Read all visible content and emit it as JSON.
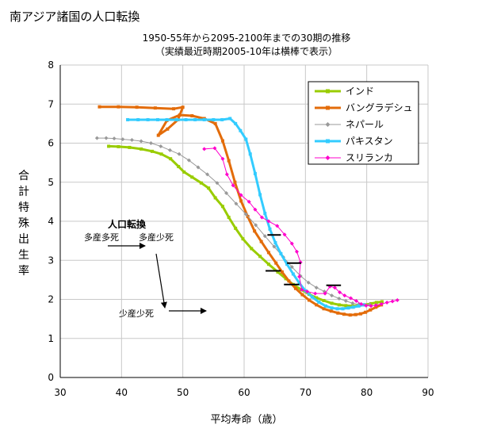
{
  "page": {
    "title": "南アジア諸国の人口転換"
  },
  "chart_data": {
    "type": "line",
    "title_line1": "1950-55年から2095-2100年までの30期の推移",
    "title_line2": "（実績最近時期2005-10年は横棒で表示）",
    "xlabel": "平均寿命（歳）",
    "ylabel": "合計特殊出生率",
    "xlim": [
      30,
      90
    ],
    "ylim": [
      0,
      8
    ],
    "x_ticks": [
      "30",
      "40",
      "50",
      "60",
      "70",
      "80",
      "90"
    ],
    "y_ticks": [
      "0",
      "1",
      "2",
      "3",
      "4",
      "5",
      "6",
      "7",
      "8"
    ],
    "series": [
      {
        "name": "インド",
        "color": "#99cc00",
        "marker": "square",
        "points": [
          [
            37.9,
            5.92
          ],
          [
            39.5,
            5.91
          ],
          [
            41.3,
            5.89
          ],
          [
            43.2,
            5.85
          ],
          [
            45.0,
            5.79
          ],
          [
            46.5,
            5.72
          ],
          [
            48.0,
            5.6
          ],
          [
            49.3,
            5.4
          ],
          [
            50.2,
            5.26
          ],
          [
            51.5,
            5.13
          ],
          [
            53.0,
            4.98
          ],
          [
            54.2,
            4.85
          ],
          [
            55.3,
            4.6
          ],
          [
            56.5,
            4.38
          ],
          [
            57.5,
            4.1
          ],
          [
            58.6,
            3.82
          ],
          [
            59.8,
            3.55
          ],
          [
            61.2,
            3.3
          ],
          [
            62.6,
            3.1
          ],
          [
            64.0,
            2.9
          ],
          [
            65.5,
            2.7
          ],
          [
            66.8,
            2.53
          ],
          [
            68.0,
            2.38
          ],
          [
            69.3,
            2.25
          ],
          [
            70.6,
            2.13
          ],
          [
            71.8,
            2.04
          ],
          [
            73.0,
            1.97
          ],
          [
            74.3,
            1.9
          ],
          [
            75.5,
            1.86
          ],
          [
            76.6,
            1.84
          ],
          [
            77.7,
            1.83
          ],
          [
            78.7,
            1.84
          ],
          [
            79.7,
            1.86
          ],
          [
            80.7,
            1.89
          ],
          [
            81.6,
            1.92
          ],
          [
            82.5,
            1.94
          ]
        ]
      },
      {
        "name": "バングラデシュ",
        "color": "#e36c0a",
        "marker": "square",
        "points": [
          [
            36.4,
            6.93
          ],
          [
            39.5,
            6.93
          ],
          [
            42.5,
            6.92
          ],
          [
            45.5,
            6.9
          ],
          [
            48.5,
            6.88
          ],
          [
            50.0,
            6.92
          ],
          [
            49.2,
            6.6
          ],
          [
            47.5,
            6.36
          ],
          [
            46.0,
            6.2
          ],
          [
            47.4,
            6.58
          ],
          [
            49.5,
            6.72
          ],
          [
            51.5,
            6.7
          ],
          [
            53.5,
            6.63
          ],
          [
            55.3,
            6.5
          ],
          [
            56.5,
            6.06
          ],
          [
            57.5,
            5.55
          ],
          [
            58.5,
            5.0
          ],
          [
            59.5,
            4.52
          ],
          [
            60.6,
            4.12
          ],
          [
            61.7,
            3.75
          ],
          [
            62.8,
            3.48
          ],
          [
            64.0,
            3.2
          ],
          [
            65.2,
            2.93
          ],
          [
            66.2,
            2.7
          ],
          [
            67.3,
            2.47
          ],
          [
            68.4,
            2.28
          ],
          [
            69.5,
            2.12
          ],
          [
            70.6,
            1.98
          ],
          [
            71.8,
            1.86
          ],
          [
            73.0,
            1.76
          ],
          [
            74.2,
            1.7
          ],
          [
            75.3,
            1.65
          ],
          [
            76.3,
            1.62
          ],
          [
            77.3,
            1.6
          ],
          [
            78.2,
            1.61
          ],
          [
            79.0,
            1.63
          ],
          [
            79.8,
            1.67
          ],
          [
            80.6,
            1.73
          ],
          [
            81.5,
            1.8
          ],
          [
            82.4,
            1.86
          ]
        ]
      },
      {
        "name": "ネパール",
        "color": "#999999",
        "marker": "diamond",
        "points": [
          [
            36.0,
            6.13
          ],
          [
            37.5,
            6.13
          ],
          [
            38.8,
            6.12
          ],
          [
            40.2,
            6.1
          ],
          [
            41.7,
            6.08
          ],
          [
            43.2,
            6.05
          ],
          [
            44.8,
            6.0
          ],
          [
            46.4,
            5.92
          ],
          [
            47.9,
            5.82
          ],
          [
            49.4,
            5.72
          ],
          [
            51.0,
            5.56
          ],
          [
            52.5,
            5.38
          ],
          [
            54.0,
            5.2
          ],
          [
            55.6,
            4.98
          ],
          [
            57.1,
            4.72
          ],
          [
            58.7,
            4.45
          ],
          [
            60.3,
            4.18
          ],
          [
            61.9,
            3.9
          ],
          [
            63.4,
            3.62
          ],
          [
            64.9,
            3.35
          ],
          [
            66.4,
            3.08
          ],
          [
            67.8,
            2.83
          ],
          [
            69.2,
            2.6
          ],
          [
            70.5,
            2.43
          ],
          [
            71.8,
            2.3
          ],
          [
            73.1,
            2.2
          ],
          [
            74.3,
            2.1
          ],
          [
            75.5,
            2.02
          ],
          [
            76.6,
            1.96
          ],
          [
            77.7,
            1.9
          ],
          [
            78.7,
            1.87
          ],
          [
            79.6,
            1.86
          ],
          [
            80.5,
            1.87
          ]
        ]
      },
      {
        "name": "パキスタン",
        "color": "#33ccff",
        "marker": "square",
        "points": [
          [
            41.0,
            6.6
          ],
          [
            42.7,
            6.6
          ],
          [
            44.3,
            6.6
          ],
          [
            45.9,
            6.6
          ],
          [
            47.4,
            6.6
          ],
          [
            49.0,
            6.6
          ],
          [
            50.5,
            6.6
          ],
          [
            52.0,
            6.6
          ],
          [
            53.5,
            6.6
          ],
          [
            55.0,
            6.6
          ],
          [
            56.4,
            6.6
          ],
          [
            57.7,
            6.63
          ],
          [
            58.6,
            6.5
          ],
          [
            59.4,
            6.32
          ],
          [
            60.3,
            6.1
          ],
          [
            61.0,
            5.72
          ],
          [
            61.8,
            5.22
          ],
          [
            62.6,
            4.68
          ],
          [
            63.4,
            4.2
          ],
          [
            64.2,
            3.8
          ],
          [
            65.1,
            3.45
          ],
          [
            66.0,
            3.17
          ],
          [
            67.0,
            2.9
          ],
          [
            68.0,
            2.65
          ],
          [
            69.0,
            2.42
          ],
          [
            70.0,
            2.22
          ],
          [
            71.1,
            2.06
          ],
          [
            72.2,
            1.93
          ],
          [
            73.3,
            1.83
          ],
          [
            74.3,
            1.78
          ],
          [
            75.2,
            1.76
          ],
          [
            76.1,
            1.76
          ],
          [
            77.0,
            1.78
          ],
          [
            77.8,
            1.8
          ],
          [
            78.7,
            1.83
          ],
          [
            79.5,
            1.86
          ]
        ]
      },
      {
        "name": "スリランカ",
        "color": "#ff00cc",
        "marker": "diamond",
        "points": [
          [
            53.5,
            5.85
          ],
          [
            55.2,
            5.87
          ],
          [
            56.5,
            5.6
          ],
          [
            57.2,
            5.2
          ],
          [
            58.2,
            4.92
          ],
          [
            59.5,
            4.67
          ],
          [
            60.8,
            4.5
          ],
          [
            61.8,
            4.3
          ],
          [
            62.9,
            4.1
          ],
          [
            64.0,
            4.0
          ],
          [
            65.4,
            3.88
          ],
          [
            66.6,
            3.66
          ],
          [
            67.8,
            3.43
          ],
          [
            68.6,
            3.22
          ],
          [
            69.2,
            2.95
          ],
          [
            69.0,
            2.58
          ],
          [
            69.4,
            2.25
          ],
          [
            70.3,
            2.2
          ],
          [
            71.6,
            2.15
          ],
          [
            73.2,
            2.15
          ],
          [
            74.0,
            2.33
          ],
          [
            74.8,
            2.3
          ],
          [
            75.6,
            2.18
          ],
          [
            76.4,
            2.1
          ],
          [
            77.4,
            2.03
          ],
          [
            78.3,
            1.96
          ],
          [
            79.1,
            1.88
          ],
          [
            79.9,
            1.84
          ],
          [
            80.7,
            1.83
          ],
          [
            81.5,
            1.85
          ],
          [
            82.4,
            1.88
          ],
          [
            83.3,
            1.92
          ],
          [
            84.2,
            1.95
          ],
          [
            85.0,
            1.98
          ]
        ]
      }
    ],
    "recent_period_bars": [
      {
        "name": "インド",
        "x": [
          63.5,
          66.0
        ],
        "y": 2.73
      },
      {
        "name": "バングラデシュ",
        "x": [
          66.5,
          69.0
        ],
        "y": 2.38
      },
      {
        "name": "ネパール",
        "x": [
          67.0,
          69.3
        ],
        "y": 2.93
      },
      {
        "name": "パキスタン",
        "x": [
          63.8,
          66.0
        ],
        "y": 3.65
      },
      {
        "name": "スリランカ",
        "x": [
          73.4,
          75.8
        ],
        "y": 2.36
      }
    ],
    "annotations": {
      "heading": "人口転換",
      "stage1": "多産多死",
      "stage2": "多産少死",
      "stage3": "少産少死"
    }
  }
}
